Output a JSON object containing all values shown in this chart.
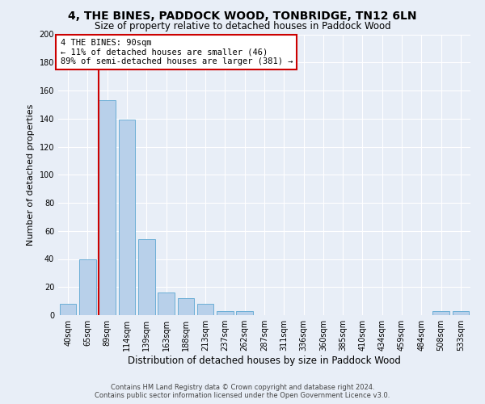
{
  "title": "4, THE BINES, PADDOCK WOOD, TONBRIDGE, TN12 6LN",
  "subtitle": "Size of property relative to detached houses in Paddock Wood",
  "xlabel": "Distribution of detached houses by size in Paddock Wood",
  "ylabel": "Number of detached properties",
  "footer_line1": "Contains HM Land Registry data © Crown copyright and database right 2024.",
  "footer_line2": "Contains public sector information licensed under the Open Government Licence v3.0.",
  "annotation_line1": "4 THE BINES: 90sqm",
  "annotation_line2": "← 11% of detached houses are smaller (46)",
  "annotation_line3": "89% of semi-detached houses are larger (381) →",
  "bin_labels": [
    "40sqm",
    "65sqm",
    "89sqm",
    "114sqm",
    "139sqm",
    "163sqm",
    "188sqm",
    "213sqm",
    "237sqm",
    "262sqm",
    "287sqm",
    "311sqm",
    "336sqm",
    "360sqm",
    "385sqm",
    "410sqm",
    "434sqm",
    "459sqm",
    "484sqm",
    "508sqm",
    "533sqm"
  ],
  "bar_values": [
    8,
    40,
    153,
    139,
    54,
    16,
    12,
    8,
    3,
    3,
    0,
    0,
    0,
    0,
    0,
    0,
    0,
    0,
    0,
    3,
    3
  ],
  "bar_color": "#b8d0ea",
  "bar_edge_color": "#6baed6",
  "reference_line_color": "#cc0000",
  "ylim": [
    0,
    200
  ],
  "yticks": [
    0,
    20,
    40,
    60,
    80,
    100,
    120,
    140,
    160,
    180,
    200
  ],
  "background_color": "#e8eef7",
  "plot_bg_color": "#e8eef7",
  "annotation_box_color": "#ffffff",
  "annotation_box_edge": "#cc0000",
  "grid_color": "#ffffff",
  "title_fontsize": 10,
  "subtitle_fontsize": 8.5,
  "ylabel_fontsize": 8,
  "xlabel_fontsize": 8.5,
  "tick_fontsize": 7,
  "footer_fontsize": 6,
  "annotation_fontsize": 7.5
}
